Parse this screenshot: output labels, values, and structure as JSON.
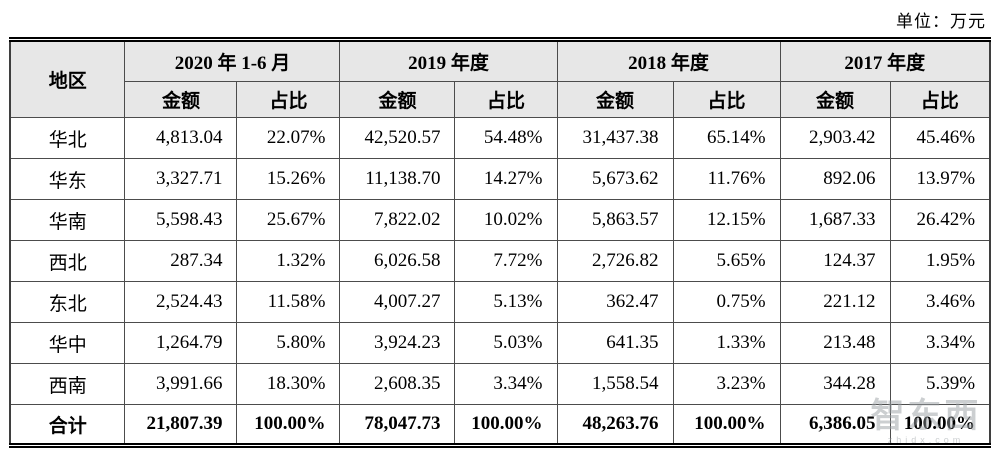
{
  "unit_label": "单位：万元",
  "table": {
    "region_header": "地区",
    "period_headers": [
      "2020 年 1-6 月",
      "2019 年度",
      "2018 年度",
      "2017 年度"
    ],
    "sub_headers": {
      "amount": "金额",
      "ratio": "占比"
    },
    "rows": [
      {
        "region": "华北",
        "values": [
          "4,813.04",
          "22.07%",
          "42,520.57",
          "54.48%",
          "31,437.38",
          "65.14%",
          "2,903.42",
          "45.46%"
        ]
      },
      {
        "region": "华东",
        "values": [
          "3,327.71",
          "15.26%",
          "11,138.70",
          "14.27%",
          "5,673.62",
          "11.76%",
          "892.06",
          "13.97%"
        ]
      },
      {
        "region": "华南",
        "values": [
          "5,598.43",
          "25.67%",
          "7,822.02",
          "10.02%",
          "5,863.57",
          "12.15%",
          "1,687.33",
          "26.42%"
        ]
      },
      {
        "region": "西北",
        "values": [
          "287.34",
          "1.32%",
          "6,026.58",
          "7.72%",
          "2,726.82",
          "5.65%",
          "124.37",
          "1.95%"
        ]
      },
      {
        "region": "东北",
        "values": [
          "2,524.43",
          "11.58%",
          "4,007.27",
          "5.13%",
          "362.47",
          "0.75%",
          "221.12",
          "3.46%"
        ]
      },
      {
        "region": "华中",
        "values": [
          "1,264.79",
          "5.80%",
          "3,924.23",
          "5.03%",
          "641.35",
          "1.33%",
          "213.48",
          "3.34%"
        ]
      },
      {
        "region": "西南",
        "values": [
          "3,991.66",
          "18.30%",
          "2,608.35",
          "3.34%",
          "1,558.54",
          "3.23%",
          "344.28",
          "5.39%"
        ]
      }
    ],
    "total_row": {
      "region": "合计",
      "values": [
        "21,807.39",
        "100.00%",
        "78,047.73",
        "100.00%",
        "48,263.76",
        "100.00%",
        "6,386.05",
        "100.00%"
      ]
    }
  },
  "watermark": {
    "text": "智东西",
    "subtext": "zhidx.com"
  },
  "colors": {
    "header_bg": "#e7e7e7",
    "inner_border": "#4c4c4c",
    "outer_border": "#000000"
  }
}
